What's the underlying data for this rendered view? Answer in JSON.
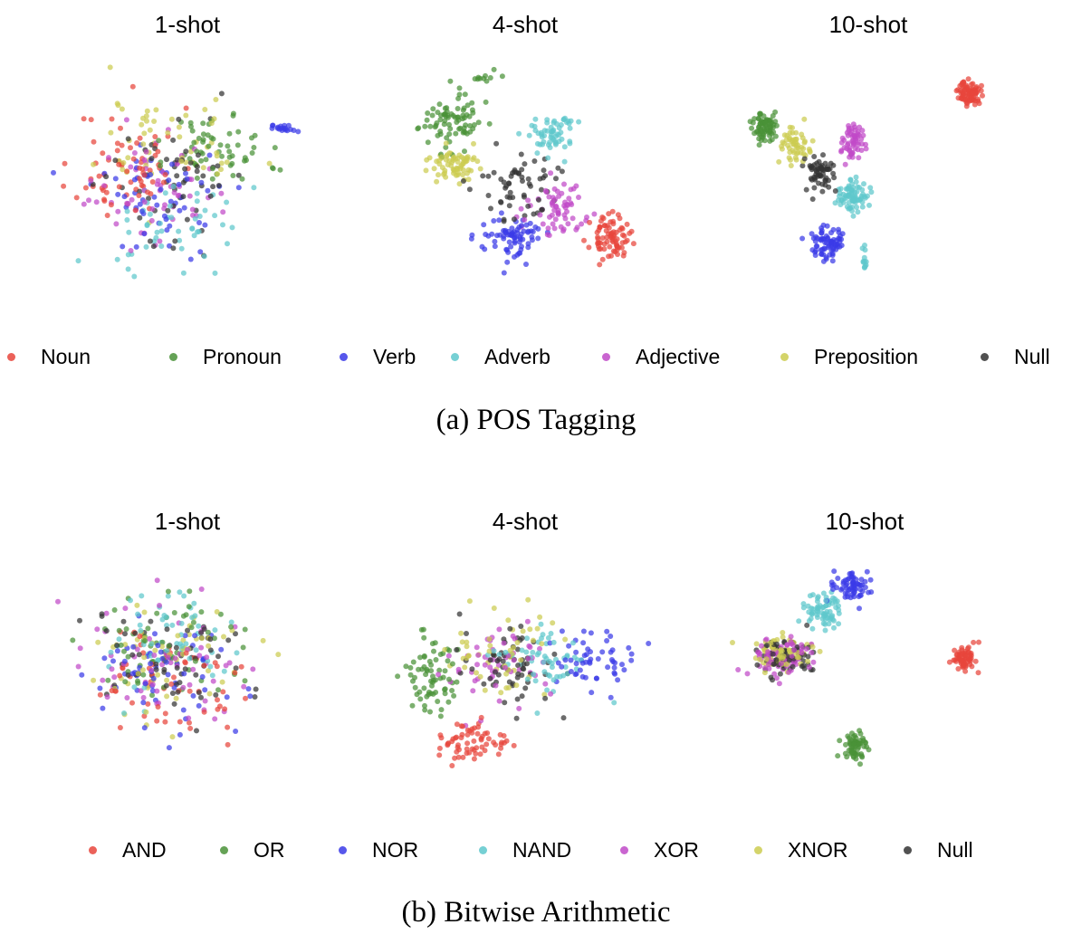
{
  "chart_data": [
    {
      "type": "scatter",
      "section": "a",
      "caption": "(a) POS Tagging",
      "legend": [
        {
          "label": "Noun",
          "color": "#e8453c"
        },
        {
          "label": "Pronoun",
          "color": "#4a9238"
        },
        {
          "label": "Verb",
          "color": "#3a3ae8"
        },
        {
          "label": "Adverb",
          "color": "#5ec8cc"
        },
        {
          "label": "Adjective",
          "color": "#c04ac8"
        },
        {
          "label": "Preposition",
          "color": "#cccc50"
        },
        {
          "label": "Null",
          "color": "#333333"
        }
      ],
      "xlim": [
        0,
        1
      ],
      "ylim": [
        0,
        1
      ],
      "grid": false,
      "axes": false,
      "panels": [
        {
          "title": "1-shot",
          "seed": 11,
          "clusters": [
            {
              "class": "Noun",
              "n": 70,
              "cx": 0.28,
              "cy": 0.55,
              "sx": 0.16,
              "sy": 0.22
            },
            {
              "class": "Pronoun",
              "n": 60,
              "cx": 0.62,
              "cy": 0.62,
              "sx": 0.16,
              "sy": 0.14
            },
            {
              "class": "Verb",
              "n": 55,
              "cx": 0.4,
              "cy": 0.4,
              "sx": 0.24,
              "sy": 0.22
            },
            {
              "class": "Adverb",
              "n": 50,
              "cx": 0.45,
              "cy": 0.28,
              "sx": 0.22,
              "sy": 0.16
            },
            {
              "class": "Adjective",
              "n": 60,
              "cx": 0.38,
              "cy": 0.45,
              "sx": 0.2,
              "sy": 0.2
            },
            {
              "class": "Preposition",
              "n": 55,
              "cx": 0.45,
              "cy": 0.65,
              "sx": 0.22,
              "sy": 0.2
            },
            {
              "class": "Null",
              "n": 55,
              "cx": 0.45,
              "cy": 0.5,
              "sx": 0.24,
              "sy": 0.24
            },
            {
              "class": "Verb",
              "n": 18,
              "cx": 0.86,
              "cy": 0.72,
              "sx": 0.05,
              "sy": 0.02
            }
          ]
        },
        {
          "title": "4-shot",
          "seed": 23,
          "clusters": [
            {
              "class": "Noun",
              "n": 80,
              "cx": 0.82,
              "cy": 0.22,
              "sx": 0.06,
              "sy": 0.08
            },
            {
              "class": "Pronoun",
              "n": 80,
              "cx": 0.22,
              "cy": 0.75,
              "sx": 0.1,
              "sy": 0.1
            },
            {
              "class": "Verb",
              "n": 75,
              "cx": 0.45,
              "cy": 0.22,
              "sx": 0.1,
              "sy": 0.09
            },
            {
              "class": "Adverb",
              "n": 60,
              "cx": 0.6,
              "cy": 0.7,
              "sx": 0.07,
              "sy": 0.08
            },
            {
              "class": "Adjective",
              "n": 65,
              "cx": 0.62,
              "cy": 0.35,
              "sx": 0.1,
              "sy": 0.1
            },
            {
              "class": "Preposition",
              "n": 70,
              "cx": 0.22,
              "cy": 0.55,
              "sx": 0.08,
              "sy": 0.07
            },
            {
              "class": "Null",
              "n": 60,
              "cx": 0.48,
              "cy": 0.45,
              "sx": 0.16,
              "sy": 0.16
            },
            {
              "class": "Pronoun",
              "n": 10,
              "cx": 0.35,
              "cy": 0.95,
              "sx": 0.05,
              "sy": 0.02
            }
          ]
        },
        {
          "title": "10-shot",
          "seed": 37,
          "clusters": [
            {
              "class": "Noun",
              "n": 80,
              "cx": 0.88,
              "cy": 0.88,
              "sx": 0.035,
              "sy": 0.045
            },
            {
              "class": "Pronoun",
              "n": 75,
              "cx": 0.1,
              "cy": 0.73,
              "sx": 0.035,
              "sy": 0.06
            },
            {
              "class": "Verb",
              "n": 75,
              "cx": 0.34,
              "cy": 0.2,
              "sx": 0.05,
              "sy": 0.07
            },
            {
              "class": "Adverb",
              "n": 75,
              "cx": 0.44,
              "cy": 0.42,
              "sx": 0.05,
              "sy": 0.06
            },
            {
              "class": "Adjective",
              "n": 60,
              "cx": 0.44,
              "cy": 0.66,
              "sx": 0.035,
              "sy": 0.06
            },
            {
              "class": "Preposition",
              "n": 55,
              "cx": 0.22,
              "cy": 0.65,
              "sx": 0.05,
              "sy": 0.08
            },
            {
              "class": "Null",
              "n": 60,
              "cx": 0.32,
              "cy": 0.52,
              "sx": 0.05,
              "sy": 0.07
            },
            {
              "class": "Adverb",
              "n": 12,
              "cx": 0.48,
              "cy": 0.12,
              "sx": 0.01,
              "sy": 0.06
            }
          ]
        }
      ]
    },
    {
      "type": "scatter",
      "section": "b",
      "caption": "(b) Bitwise Arithmetic",
      "legend": [
        {
          "label": "AND",
          "color": "#e8453c"
        },
        {
          "label": "OR",
          "color": "#4a9238"
        },
        {
          "label": "NOR",
          "color": "#3a3ae8"
        },
        {
          "label": "NAND",
          "color": "#5ec8cc"
        },
        {
          "label": "XOR",
          "color": "#c04ac8"
        },
        {
          "label": "XNOR",
          "color": "#cccc50"
        },
        {
          "label": "Null",
          "color": "#333333"
        }
      ],
      "xlim": [
        0,
        1
      ],
      "ylim": [
        0,
        1
      ],
      "grid": false,
      "axes": false,
      "panels": [
        {
          "title": "1-shot",
          "seed": 51,
          "clusters": [
            {
              "class": "AND",
              "n": 60,
              "cx": 0.4,
              "cy": 0.45,
              "sx": 0.26,
              "sy": 0.22
            },
            {
              "class": "OR",
              "n": 60,
              "cx": 0.42,
              "cy": 0.62,
              "sx": 0.24,
              "sy": 0.2
            },
            {
              "class": "NOR",
              "n": 60,
              "cx": 0.38,
              "cy": 0.5,
              "sx": 0.24,
              "sy": 0.24
            },
            {
              "class": "NAND",
              "n": 55,
              "cx": 0.45,
              "cy": 0.62,
              "sx": 0.24,
              "sy": 0.2
            },
            {
              "class": "XOR",
              "n": 60,
              "cx": 0.42,
              "cy": 0.55,
              "sx": 0.24,
              "sy": 0.24
            },
            {
              "class": "XNOR",
              "n": 55,
              "cx": 0.45,
              "cy": 0.55,
              "sx": 0.24,
              "sy": 0.22
            },
            {
              "class": "Null",
              "n": 60,
              "cx": 0.45,
              "cy": 0.55,
              "sx": 0.24,
              "sy": 0.22
            }
          ]
        },
        {
          "title": "4-shot",
          "seed": 67,
          "clusters": [
            {
              "class": "AND",
              "n": 65,
              "cx": 0.3,
              "cy": 0.18,
              "sx": 0.12,
              "sy": 0.08
            },
            {
              "class": "OR",
              "n": 70,
              "cx": 0.14,
              "cy": 0.48,
              "sx": 0.07,
              "sy": 0.14
            },
            {
              "class": "NOR",
              "n": 55,
              "cx": 0.75,
              "cy": 0.55,
              "sx": 0.13,
              "sy": 0.12
            },
            {
              "class": "NAND",
              "n": 55,
              "cx": 0.55,
              "cy": 0.55,
              "sx": 0.14,
              "sy": 0.14
            },
            {
              "class": "XOR",
              "n": 55,
              "cx": 0.4,
              "cy": 0.55,
              "sx": 0.14,
              "sy": 0.14
            },
            {
              "class": "XNOR",
              "n": 50,
              "cx": 0.4,
              "cy": 0.58,
              "sx": 0.16,
              "sy": 0.16
            },
            {
              "class": "Null",
              "n": 60,
              "cx": 0.45,
              "cy": 0.55,
              "sx": 0.16,
              "sy": 0.16
            }
          ]
        },
        {
          "title": "10-shot",
          "seed": 83,
          "clusters": [
            {
              "class": "AND",
              "n": 65,
              "cx": 0.88,
              "cy": 0.55,
              "sx": 0.035,
              "sy": 0.05
            },
            {
              "class": "OR",
              "n": 65,
              "cx": 0.46,
              "cy": 0.15,
              "sx": 0.04,
              "sy": 0.05
            },
            {
              "class": "NOR",
              "n": 65,
              "cx": 0.45,
              "cy": 0.88,
              "sx": 0.06,
              "sy": 0.06
            },
            {
              "class": "NAND",
              "n": 70,
              "cx": 0.34,
              "cy": 0.77,
              "sx": 0.07,
              "sy": 0.07
            },
            {
              "class": "XOR",
              "n": 70,
              "cx": 0.18,
              "cy": 0.57,
              "sx": 0.1,
              "sy": 0.07
            },
            {
              "class": "XNOR",
              "n": 70,
              "cx": 0.18,
              "cy": 0.57,
              "sx": 0.1,
              "sy": 0.07
            },
            {
              "class": "Null",
              "n": 75,
              "cx": 0.2,
              "cy": 0.56,
              "sx": 0.1,
              "sy": 0.07
            }
          ]
        }
      ]
    }
  ]
}
